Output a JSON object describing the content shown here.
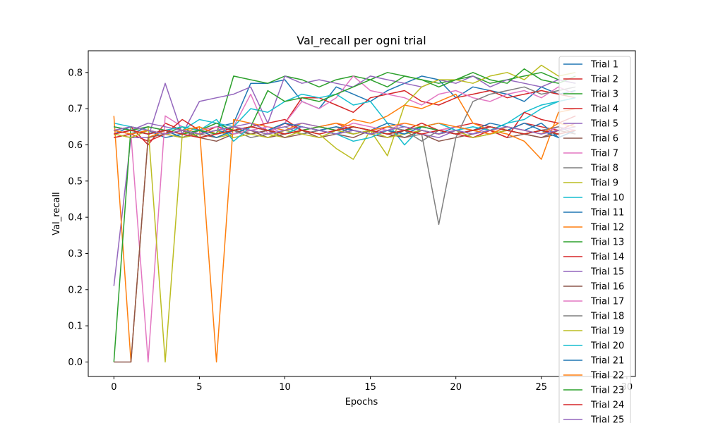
{
  "chart_data": {
    "type": "line",
    "title": "Val_recall per ogni trial",
    "xlabel": "Epochs",
    "ylabel": "Val_recall",
    "xlim": [
      -1.5,
      30.5
    ],
    "ylim": [
      -0.04,
      0.86
    ],
    "xticks": [
      0,
      5,
      10,
      15,
      20,
      25,
      30
    ],
    "xtick_labels": [
      "0",
      "5",
      "10",
      "15",
      "20",
      "25",
      "30"
    ],
    "yticks": [
      0.0,
      0.1,
      0.2,
      0.3,
      0.4,
      0.5,
      0.6,
      0.7,
      0.8
    ],
    "ytick_labels": [
      "0.0",
      "0.1",
      "0.2",
      "0.3",
      "0.4",
      "0.5",
      "0.6",
      "0.7",
      "0.8"
    ],
    "grid": false,
    "legend_position": "top-right",
    "series": [
      {
        "name": "Trial 1",
        "color": "#1f77b4",
        "values": [
          0.63,
          0.65,
          0.64,
          0.62,
          0.63,
          0.64,
          0.65,
          0.66,
          0.77,
          0.77,
          0.78,
          0.72,
          0.7,
          0.76,
          0.74,
          0.72,
          0.75,
          0.77,
          0.79,
          0.78,
          0.73,
          0.76,
          0.75,
          0.74,
          0.72,
          0.76,
          0.74,
          0.75
        ]
      },
      {
        "name": "Trial 2",
        "color": "#d62728",
        "values": [
          0.62,
          0.63,
          0.61,
          0.63,
          0.62,
          0.64,
          0.63,
          0.65,
          0.64,
          0.63,
          0.66,
          0.64,
          0.65,
          0.66,
          0.64,
          0.63,
          0.65,
          0.64,
          0.66,
          0.64,
          0.65,
          0.66,
          0.65,
          0.64,
          0.66,
          0.65,
          0.64,
          0.66
        ]
      },
      {
        "name": "Trial 3",
        "color": "#2ca02c",
        "values": [
          0.65,
          0.64,
          0.63,
          0.64,
          0.65,
          0.62,
          0.63,
          0.79,
          0.78,
          0.77,
          0.79,
          0.78,
          0.76,
          0.78,
          0.79,
          0.78,
          0.8,
          0.79,
          0.78,
          0.77,
          0.78,
          0.79,
          0.77,
          0.78,
          0.79,
          0.8,
          0.78,
          0.77
        ]
      },
      {
        "name": "Trial 4",
        "color": "#d62728",
        "values": [
          0.64,
          0.65,
          0.6,
          0.66,
          0.64,
          0.63,
          0.65,
          0.64,
          0.63,
          0.64,
          0.66,
          0.73,
          0.73,
          0.71,
          0.69,
          0.73,
          0.74,
          0.75,
          0.72,
          0.71,
          0.73,
          0.74,
          0.75,
          0.73,
          0.74,
          0.75,
          0.74,
          0.73
        ]
      },
      {
        "name": "Trial 5",
        "color": "#9467bd",
        "values": [
          0.21,
          0.62,
          0.62,
          0.77,
          0.63,
          0.72,
          0.73,
          0.74,
          0.76,
          0.66,
          0.79,
          0.77,
          0.78,
          0.77,
          0.76,
          0.79,
          0.78,
          0.77,
          0.76,
          0.78,
          0.77,
          0.79,
          0.76,
          0.78,
          0.77,
          0.76,
          0.78,
          0.77
        ]
      },
      {
        "name": "Trial 6",
        "color": "#8c564b",
        "values": [
          0.63,
          0.62,
          0.64,
          0.63,
          0.64,
          0.62,
          0.61,
          0.63,
          0.64,
          0.62,
          0.63,
          0.64,
          0.62,
          0.63,
          0.64,
          0.63,
          0.62,
          0.64,
          0.63,
          0.61,
          0.62,
          0.63,
          0.64,
          0.62,
          0.63,
          0.62,
          0.63,
          0.64
        ]
      },
      {
        "name": "Trial 7",
        "color": "#e377c2",
        "values": [
          0.64,
          0.63,
          0.0,
          0.68,
          0.65,
          0.64,
          0.66,
          0.65,
          0.74,
          0.63,
          0.66,
          0.72,
          0.7,
          0.73,
          0.79,
          0.75,
          0.74,
          0.73,
          0.71,
          0.74,
          0.75,
          0.73,
          0.72,
          0.74,
          0.75,
          0.73,
          0.76,
          0.74
        ]
      },
      {
        "name": "Trial 8",
        "color": "#7f7f7f",
        "values": [
          0.65,
          0.64,
          0.63,
          0.64,
          0.62,
          0.63,
          0.64,
          0.65,
          0.63,
          0.64,
          0.65,
          0.63,
          0.64,
          0.65,
          0.64,
          0.63,
          0.64,
          0.62,
          0.63,
          0.38,
          0.62,
          0.72,
          0.74,
          0.75,
          0.76,
          0.74,
          0.75,
          0.76
        ]
      },
      {
        "name": "Trial 9",
        "color": "#bcbd22",
        "values": [
          0.64,
          0.63,
          0.65,
          0.0,
          0.63,
          0.64,
          0.62,
          0.63,
          0.64,
          0.63,
          0.62,
          0.64,
          0.63,
          0.59,
          0.56,
          0.64,
          0.57,
          0.71,
          0.76,
          0.78,
          0.78,
          0.77,
          0.79,
          0.8,
          0.78,
          0.82,
          0.79,
          0.8
        ]
      },
      {
        "name": "Trial 10",
        "color": "#17becf",
        "values": [
          0.66,
          0.65,
          0.64,
          0.63,
          0.64,
          0.67,
          0.66,
          0.65,
          0.7,
          0.69,
          0.72,
          0.74,
          0.73,
          0.74,
          0.71,
          0.72,
          0.66,
          0.6,
          0.65,
          0.66,
          0.64,
          0.65,
          0.64,
          0.66,
          0.69,
          0.71,
          0.72,
          0.73
        ]
      },
      {
        "name": "Trial 11",
        "color": "#1f77b4",
        "values": [
          0.64,
          0.63,
          0.65,
          0.64,
          0.62,
          0.63,
          0.64,
          0.63,
          0.65,
          0.64,
          0.66,
          0.65,
          0.64,
          0.63,
          0.65,
          0.64,
          0.66,
          0.65,
          0.64,
          0.63,
          0.65,
          0.64,
          0.66,
          0.65,
          0.64,
          0.66,
          0.62,
          0.64
        ]
      },
      {
        "name": "Trial 12",
        "color": "#ff7f0e",
        "values": [
          0.68,
          0.0,
          0.62,
          0.64,
          0.63,
          0.65,
          0.0,
          0.67,
          0.66,
          0.65,
          0.64,
          0.66,
          0.65,
          0.64,
          0.67,
          0.66,
          0.68,
          0.71,
          0.7,
          0.72,
          0.74,
          0.66,
          0.64,
          0.63,
          0.61,
          0.56,
          0.69,
          0.7
        ]
      },
      {
        "name": "Trial 13",
        "color": "#2ca02c",
        "values": [
          0.0,
          0.65,
          0.64,
          0.63,
          0.65,
          0.64,
          0.66,
          0.64,
          0.65,
          0.75,
          0.72,
          0.73,
          0.72,
          0.74,
          0.76,
          0.78,
          0.76,
          0.79,
          0.78,
          0.76,
          0.78,
          0.8,
          0.78,
          0.77,
          0.81,
          0.78,
          0.77,
          0.79
        ]
      },
      {
        "name": "Trial 14",
        "color": "#d62728",
        "values": [
          0.62,
          0.63,
          0.64,
          0.63,
          0.67,
          0.64,
          0.63,
          0.64,
          0.65,
          0.66,
          0.67,
          0.64,
          0.65,
          0.64,
          0.65,
          0.64,
          0.63,
          0.64,
          0.65,
          0.64,
          0.63,
          0.62,
          0.64,
          0.62,
          0.69,
          0.67,
          0.66,
          0.68
        ]
      },
      {
        "name": "Trial 15",
        "color": "#9467bd",
        "values": [
          0.63,
          0.64,
          0.66,
          0.65,
          0.64,
          0.63,
          0.64,
          0.65,
          0.66,
          0.64,
          0.65,
          0.66,
          0.65,
          0.64,
          0.63,
          0.64,
          0.65,
          0.64,
          0.63,
          0.62,
          0.64,
          0.63,
          0.65,
          0.64,
          0.63,
          0.64,
          0.65,
          0.63
        ]
      },
      {
        "name": "Trial 16",
        "color": "#8c564b",
        "values": [
          0.0,
          0.0,
          0.62,
          0.63,
          0.64,
          0.63,
          0.62,
          0.64,
          0.63,
          0.64,
          0.62,
          0.63,
          0.64,
          0.63,
          0.62,
          0.64,
          0.63,
          0.62,
          0.64,
          0.63,
          0.64,
          0.62,
          0.63,
          0.64,
          0.63,
          0.62,
          0.64,
          0.63
        ]
      },
      {
        "name": "Trial 17",
        "color": "#e377c2",
        "values": [
          0.63,
          0.64,
          0.65,
          0.64,
          0.63,
          0.64,
          0.65,
          0.63,
          0.64,
          0.65,
          0.63,
          0.64,
          0.65,
          0.64,
          0.66,
          0.65,
          0.64,
          0.66,
          0.65,
          0.64,
          0.65,
          0.64,
          0.63,
          0.65,
          0.64,
          0.63,
          0.65,
          0.64
        ]
      },
      {
        "name": "Trial 18",
        "color": "#7f7f7f",
        "values": [
          0.64,
          0.63,
          0.64,
          0.63,
          0.62,
          0.64,
          0.63,
          0.64,
          0.62,
          0.63,
          0.64,
          0.63,
          0.64,
          0.65,
          0.63,
          0.64,
          0.65,
          0.64,
          0.61,
          0.64,
          0.63,
          0.64,
          0.65,
          0.64,
          0.63,
          0.64,
          0.65,
          0.63
        ]
      },
      {
        "name": "Trial 19",
        "color": "#bcbd22",
        "values": [
          0.63,
          0.62,
          0.64,
          0.63,
          0.62,
          0.63,
          0.64,
          0.62,
          0.63,
          0.62,
          0.64,
          0.63,
          0.62,
          0.64,
          0.63,
          0.64,
          0.62,
          0.63,
          0.64,
          0.63,
          0.64,
          0.62,
          0.63,
          0.64,
          0.63,
          0.64,
          0.63,
          0.64
        ]
      },
      {
        "name": "Trial 20",
        "color": "#17becf",
        "values": [
          0.65,
          0.64,
          0.63,
          0.64,
          0.65,
          0.64,
          0.67,
          0.61,
          0.65,
          0.64,
          0.63,
          0.65,
          0.64,
          0.63,
          0.61,
          0.62,
          0.64,
          0.63,
          0.65,
          0.66,
          0.64,
          0.65,
          0.64,
          0.66,
          0.67,
          0.7,
          0.72,
          0.73
        ]
      },
      {
        "name": "Trial 21",
        "color": "#1f77b4",
        "values": [
          0.65,
          0.64,
          0.63,
          0.64,
          0.63,
          0.64,
          0.62,
          0.64,
          0.65,
          0.64,
          0.66,
          0.65,
          0.64,
          0.65,
          0.64,
          0.63,
          0.64,
          0.63,
          0.65,
          0.64,
          0.63,
          0.64,
          0.65,
          0.64,
          0.66,
          0.64,
          0.62,
          0.64
        ]
      },
      {
        "name": "Trial 22",
        "color": "#ff7f0e",
        "values": [
          0.64,
          0.63,
          0.64,
          0.63,
          0.64,
          0.65,
          0.63,
          0.64,
          0.65,
          0.64,
          0.63,
          0.64,
          0.65,
          0.66,
          0.65,
          0.64,
          0.65,
          0.66,
          0.65,
          0.66,
          0.65,
          0.64,
          0.63,
          0.65,
          0.64,
          0.63,
          0.66,
          0.65
        ]
      },
      {
        "name": "Trial 23",
        "color": "#2ca02c",
        "values": [
          0.65,
          0.64,
          0.65,
          0.64,
          0.63,
          0.64,
          0.63,
          0.64,
          0.65,
          0.64,
          0.63,
          0.64,
          0.65,
          0.64,
          0.65,
          0.64,
          0.63,
          0.64,
          0.65,
          0.64,
          0.63,
          0.64,
          0.65,
          0.64,
          0.63,
          0.64,
          0.63,
          0.64
        ]
      },
      {
        "name": "Trial 24",
        "color": "#d62728",
        "values": [
          0.63,
          0.64,
          0.63,
          0.64,
          0.63,
          0.62,
          0.63,
          0.64,
          0.65,
          0.64,
          0.63,
          0.64,
          0.63,
          0.64,
          0.65,
          0.64,
          0.63,
          0.64,
          0.63,
          0.64,
          0.63,
          0.64,
          0.65,
          0.64,
          0.63,
          0.64,
          0.63,
          0.64
        ]
      },
      {
        "name": "Trial 25",
        "color": "#9467bd",
        "values": [
          0.64,
          0.65,
          0.64,
          0.63,
          0.64,
          0.63,
          0.64,
          0.65,
          0.64,
          0.63,
          0.64,
          0.65,
          0.64,
          0.63,
          0.64,
          0.63,
          0.64,
          0.65,
          0.64,
          0.63,
          0.64,
          0.63,
          0.64,
          0.65,
          0.64,
          0.63,
          0.64,
          0.65
        ]
      }
    ]
  }
}
